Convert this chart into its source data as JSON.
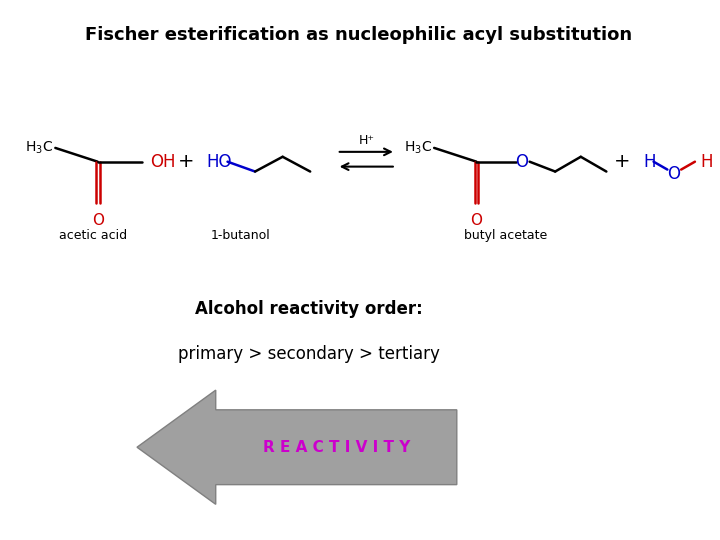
{
  "title": "Fischer esterification as nucleophilic acyl substitution",
  "title_fontsize": 13,
  "title_fontweight": "bold",
  "background_color": "#ffffff",
  "reactivity_label": "R E A C T I V I T Y",
  "reactivity_color": "#cc00cc",
  "reactivity_fontsize": 11,
  "red_color": "#cc0000",
  "blue_color": "#0000cc",
  "black_color": "#000000",
  "label_acetic": "acetic acid",
  "label_butanol": "1-butanol",
  "label_butyl": "butyl acetate",
  "label_fontsize": 9,
  "catalyst_text": "H⁺",
  "alcohol_order_text": "Alcohol reactivity order:",
  "primary_text": "primary > secondary > tertiary"
}
